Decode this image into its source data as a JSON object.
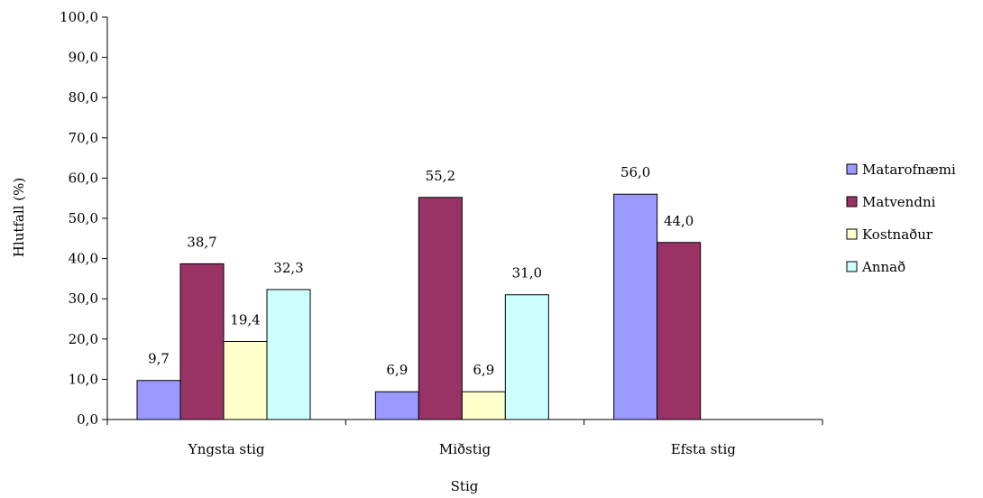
{
  "chart_data": {
    "type": "bar",
    "title": "",
    "xlabel": "Stig",
    "ylabel": "Hlutfall (%)",
    "ylim": [
      0,
      100
    ],
    "ytick_step": 10,
    "categories": [
      "Yngsta stig",
      "Miðstig",
      "Efsta stig"
    ],
    "series": [
      {
        "name": "Matarofnæmi",
        "color": "#9999ff",
        "values": [
          9.7,
          6.9,
          56.0
        ],
        "labels": [
          "9,7",
          "6,9",
          "56,0"
        ]
      },
      {
        "name": "Matvendni",
        "color": "#993366",
        "values": [
          38.7,
          55.2,
          44.0
        ],
        "labels": [
          "38,7",
          "55,2",
          "44,0"
        ]
      },
      {
        "name": "Kostnaður",
        "color": "#ffffcc",
        "values": [
          19.4,
          6.9,
          null
        ],
        "labels": [
          "19,4",
          "6,9",
          ""
        ]
      },
      {
        "name": "Annað",
        "color": "#ccffff",
        "values": [
          32.3,
          31.0,
          null
        ],
        "labels": [
          "32,3",
          "31,0",
          ""
        ]
      }
    ],
    "grid": false,
    "legend": "right"
  }
}
